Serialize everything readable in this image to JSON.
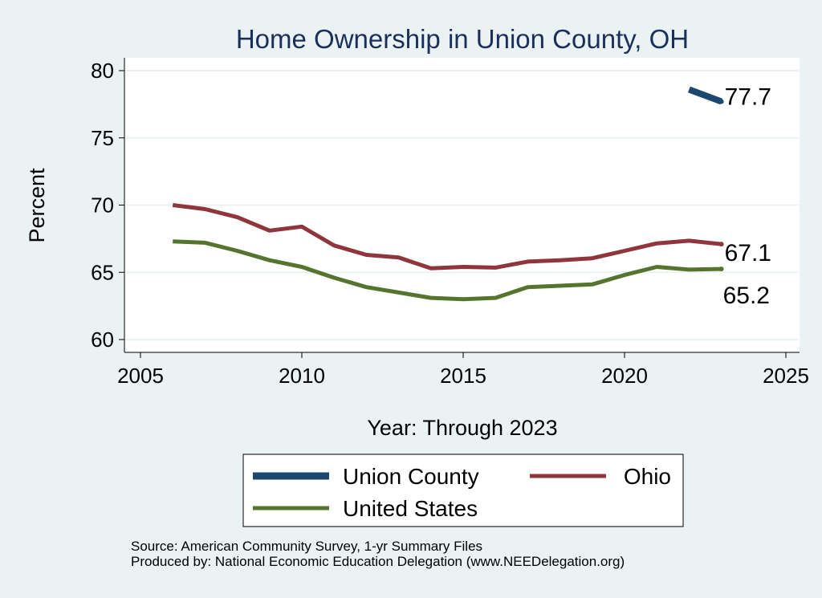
{
  "chart_data": {
    "type": "line",
    "title": "Home Ownership in Union County, OH",
    "xlabel": "Year: Through 2023",
    "ylabel": "Percent",
    "xlim": [
      2005,
      2025
    ],
    "ylim": [
      60,
      80
    ],
    "x_ticks": [
      2005,
      2010,
      2015,
      2020,
      2025
    ],
    "y_ticks": [
      60,
      65,
      70,
      75,
      80
    ],
    "grid": true,
    "legend_position": "bottom",
    "series": [
      {
        "name": "Union County",
        "color": "#1a476f",
        "width": 8,
        "x": [
          2022,
          2023
        ],
        "values": [
          78.6,
          77.7
        ],
        "end_label": "77.7"
      },
      {
        "name": "Ohio",
        "color": "#90353b",
        "width": 5,
        "x": [
          2006,
          2007,
          2008,
          2009,
          2010,
          2011,
          2012,
          2013,
          2014,
          2015,
          2016,
          2017,
          2018,
          2019,
          2020,
          2021,
          2022,
          2023
        ],
        "values": [
          70.0,
          69.7,
          69.1,
          68.1,
          68.4,
          67.0,
          66.3,
          66.1,
          65.3,
          65.4,
          65.35,
          65.8,
          65.9,
          66.05,
          66.6,
          67.15,
          67.35,
          67.1
        ],
        "end_label": "67.1"
      },
      {
        "name": "United States",
        "color": "#55752f",
        "width": 5,
        "x": [
          2006,
          2007,
          2008,
          2009,
          2010,
          2011,
          2012,
          2013,
          2014,
          2015,
          2016,
          2017,
          2018,
          2019,
          2020,
          2021,
          2022,
          2023
        ],
        "values": [
          67.3,
          67.2,
          66.6,
          65.9,
          65.4,
          64.6,
          63.9,
          63.5,
          63.1,
          63.0,
          63.1,
          63.9,
          64.0,
          64.1,
          64.8,
          65.4,
          65.2,
          65.25
        ],
        "end_label": "65.2"
      }
    ]
  },
  "source": {
    "line1": "Source: American Community Survey, 1-yr Summary Files",
    "line2": "Produced by: National Economic Education Delegation (www.NEEDelegation.org)"
  }
}
